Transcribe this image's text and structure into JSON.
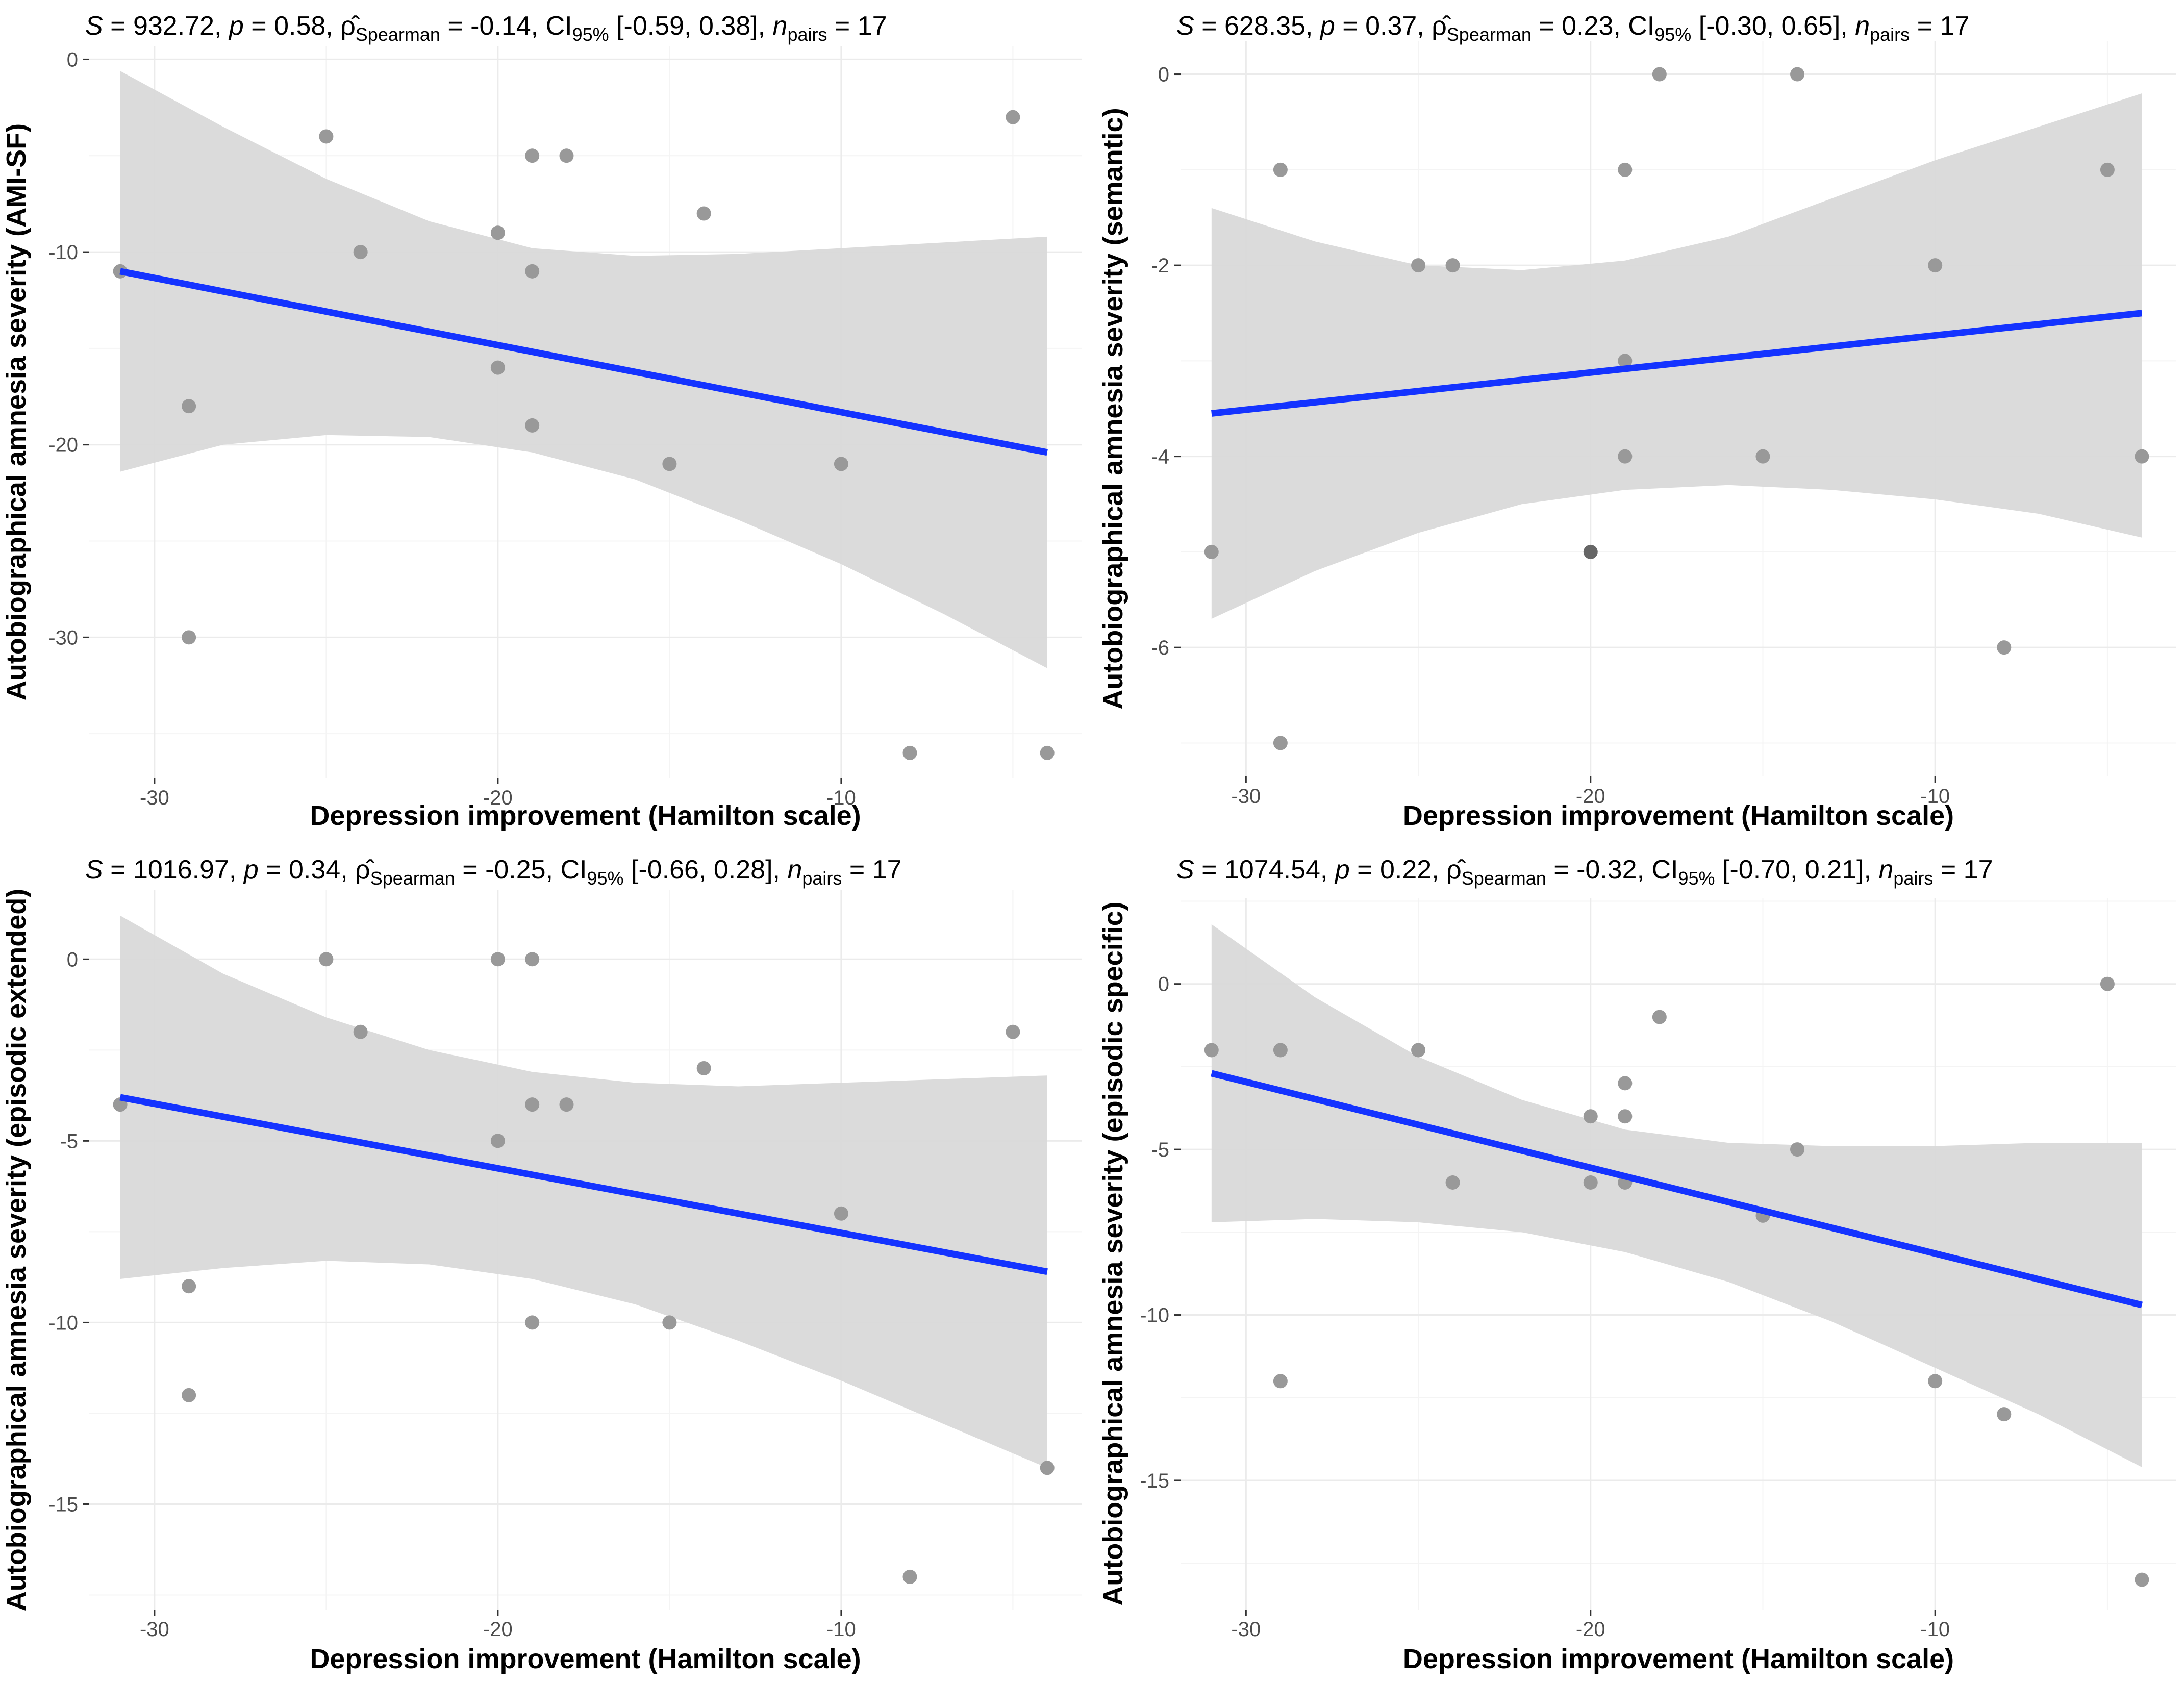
{
  "figure": {
    "background": "#ffffff",
    "colors": {
      "point": "#999999",
      "point_overlap": "#666666",
      "fit_line": "#1433ff",
      "ci_band": "#d9d9d9",
      "grid_major": "#ebebeb",
      "grid_minor": "#f4f4f4",
      "tick_text": "#4d4d4d"
    }
  },
  "chart_data": [
    {
      "type": "scatter",
      "panel": "top-left",
      "title": {
        "s_part": "S = 932.72, ",
        "p_part": "p = 0.58, ",
        "rho_symbol": "ρ̂",
        "rho_sub": "Spearman",
        "rho_value": " = -0.14, CI",
        "ci_sub": "95%",
        "ci_value": " [-0.59, 0.38], ",
        "n_symbol": "n",
        "n_sub": "pairs",
        "n_value": " = 17"
      },
      "xlabel": "Depression improvement (Hamilton scale)",
      "ylabel": "Autobiographical amnesia severity (AMI-SF)",
      "xlim": [
        -31.9,
        -3
      ],
      "ylim": [
        -37.3,
        0.7
      ],
      "xticks": [
        -30,
        -20,
        -10
      ],
      "xtick_labels": [
        "-30",
        "-20",
        "-10"
      ],
      "yticks": [
        0,
        -10,
        -20,
        -30
      ],
      "ytick_labels": [
        "0",
        "-10",
        "-20",
        "-30"
      ],
      "points": [
        {
          "x": -31,
          "y": -11
        },
        {
          "x": -29,
          "y": -18
        },
        {
          "x": -29,
          "y": -30
        },
        {
          "x": -25,
          "y": -4
        },
        {
          "x": -24,
          "y": -10
        },
        {
          "x": -20,
          "y": -9
        },
        {
          "x": -20,
          "y": -16
        },
        {
          "x": -19,
          "y": -5
        },
        {
          "x": -19,
          "y": -11
        },
        {
          "x": -19,
          "y": -19
        },
        {
          "x": -18,
          "y": -5
        },
        {
          "x": -15,
          "y": -21
        },
        {
          "x": -14,
          "y": -8
        },
        {
          "x": -10,
          "y": -21
        },
        {
          "x": -8,
          "y": -36
        },
        {
          "x": -5,
          "y": -3
        },
        {
          "x": -4,
          "y": -36
        }
      ],
      "fit": {
        "x": [
          -31,
          -4
        ],
        "y": [
          -11,
          -20.4
        ]
      },
      "ci_band": {
        "x": [
          -31,
          -28,
          -25,
          -22,
          -19,
          -16,
          -13,
          -10,
          -7,
          -4
        ],
        "upper": [
          -0.6,
          -3.5,
          -6.2,
          -8.4,
          -9.8,
          -10.2,
          -10.1,
          -9.8,
          -9.5,
          -9.2
        ],
        "lower": [
          -21.4,
          -20.0,
          -19.5,
          -19.6,
          -20.4,
          -21.8,
          -23.9,
          -26.2,
          -28.8,
          -31.6
        ]
      }
    },
    {
      "type": "scatter",
      "panel": "top-right",
      "title": {
        "s_part": "S = 628.35, ",
        "p_part": "p = 0.37, ",
        "rho_symbol": "ρ̂",
        "rho_sub": "Spearman",
        "rho_value": " = 0.23, CI",
        "ci_sub": "95%",
        "ci_value": " [-0.30, 0.65], ",
        "n_symbol": "n",
        "n_sub": "pairs",
        "n_value": " = 17"
      },
      "xlabel": "Depression improvement (Hamilton scale)",
      "ylabel": "Autobiographical amnesia severity (semantic)",
      "xlim": [
        -31.9,
        -3
      ],
      "ylim": [
        -7.35,
        0.35
      ],
      "xticks": [
        -30,
        -20,
        -10
      ],
      "xtick_labels": [
        "-30",
        "-20",
        "-10"
      ],
      "yticks": [
        0,
        -2,
        -4,
        -6
      ],
      "ytick_labels": [
        "0",
        "-2",
        "-4",
        "-6"
      ],
      "points": [
        {
          "x": -31,
          "y": -5
        },
        {
          "x": -29,
          "y": -1
        },
        {
          "x": -29,
          "y": -7
        },
        {
          "x": -25,
          "y": -2
        },
        {
          "x": -24,
          "y": -2
        },
        {
          "x": -20,
          "y": -5,
          "overlap": true
        },
        {
          "x": -19,
          "y": -1
        },
        {
          "x": -19,
          "y": -3
        },
        {
          "x": -19,
          "y": -4
        },
        {
          "x": -18,
          "y": 0
        },
        {
          "x": -15,
          "y": -4
        },
        {
          "x": -14,
          "y": 0
        },
        {
          "x": -10,
          "y": -2
        },
        {
          "x": -8,
          "y": -6
        },
        {
          "x": -5,
          "y": -1
        },
        {
          "x": -4,
          "y": -4
        }
      ],
      "fit": {
        "x": [
          -31,
          -4
        ],
        "y": [
          -3.55,
          -2.5
        ]
      },
      "ci_band": {
        "x": [
          -31,
          -28,
          -25,
          -22,
          -19,
          -16,
          -13,
          -10,
          -7,
          -4
        ],
        "upper": [
          -1.4,
          -1.75,
          -2.0,
          -2.05,
          -1.95,
          -1.7,
          -1.3,
          -0.9,
          -0.55,
          -0.2
        ],
        "lower": [
          -5.7,
          -5.2,
          -4.8,
          -4.5,
          -4.35,
          -4.3,
          -4.35,
          -4.45,
          -4.6,
          -4.85
        ]
      }
    },
    {
      "type": "scatter",
      "panel": "bottom-left",
      "title": {
        "s_part": "S = 1016.97, ",
        "p_part": "p = 0.34, ",
        "rho_symbol": "ρ̂",
        "rho_sub": "Spearman",
        "rho_value": " = -0.25, CI",
        "ci_sub": "95%",
        "ci_value": " [-0.66, 0.28], ",
        "n_symbol": "n",
        "n_sub": "pairs",
        "n_value": " = 17"
      },
      "xlabel": "Depression improvement (Hamilton scale)",
      "ylabel": "Autobiographical amnesia severity (episodic extended)",
      "xlim": [
        -31.9,
        -3
      ],
      "ylim": [
        -17.9,
        1.9
      ],
      "xticks": [
        -30,
        -20,
        -10
      ],
      "xtick_labels": [
        "-30",
        "-20",
        "-10"
      ],
      "yticks": [
        0,
        -5,
        -10,
        -15
      ],
      "ytick_labels": [
        "0",
        "-5",
        "-10",
        "-15"
      ],
      "points": [
        {
          "x": -31,
          "y": -4
        },
        {
          "x": -29,
          "y": -9
        },
        {
          "x": -29,
          "y": -12
        },
        {
          "x": -25,
          "y": 0
        },
        {
          "x": -24,
          "y": -2
        },
        {
          "x": -20,
          "y": 0
        },
        {
          "x": -20,
          "y": -5
        },
        {
          "x": -19,
          "y": 0
        },
        {
          "x": -19,
          "y": -4
        },
        {
          "x": -19,
          "y": -10
        },
        {
          "x": -18,
          "y": -4
        },
        {
          "x": -15,
          "y": -10
        },
        {
          "x": -14,
          "y": -3
        },
        {
          "x": -10,
          "y": -7
        },
        {
          "x": -8,
          "y": -17
        },
        {
          "x": -5,
          "y": -2
        },
        {
          "x": -4,
          "y": -14
        }
      ],
      "fit": {
        "x": [
          -31,
          -4
        ],
        "y": [
          -3.8,
          -8.6
        ]
      },
      "ci_band": {
        "x": [
          -31,
          -28,
          -25,
          -22,
          -19,
          -16,
          -13,
          -10,
          -7,
          -4
        ],
        "upper": [
          1.2,
          -0.4,
          -1.6,
          -2.5,
          -3.1,
          -3.4,
          -3.5,
          -3.4,
          -3.3,
          -3.2
        ],
        "lower": [
          -8.8,
          -8.5,
          -8.3,
          -8.4,
          -8.8,
          -9.5,
          -10.5,
          -11.6,
          -12.8,
          -14.0
        ]
      }
    },
    {
      "type": "scatter",
      "panel": "bottom-right",
      "title": {
        "s_part": "S = 1074.54, ",
        "p_part": "p = 0.22, ",
        "rho_symbol": "ρ̂",
        "rho_sub": "Spearman",
        "rho_value": " = -0.32, CI",
        "ci_sub": "95%",
        "ci_value": " [-0.70, 0.21], ",
        "n_symbol": "n",
        "n_sub": "pairs",
        "n_value": " = 17"
      },
      "xlabel": "Depression improvement (Hamilton scale)",
      "ylabel": "Autobiographical amnesia severity (episodic specific)",
      "xlim": [
        -31.9,
        -3
      ],
      "ylim": [
        -18.9,
        2.6
      ],
      "xticks": [
        -30,
        -20,
        -10
      ],
      "xtick_labels": [
        "-30",
        "-20",
        "-10"
      ],
      "yticks": [
        0,
        -5,
        -10,
        -15
      ],
      "ytick_labels": [
        "0",
        "-5",
        "-10",
        "-15"
      ],
      "points": [
        {
          "x": -31,
          "y": -2
        },
        {
          "x": -29,
          "y": -2
        },
        {
          "x": -29,
          "y": -12
        },
        {
          "x": -25,
          "y": -2
        },
        {
          "x": -24,
          "y": -6
        },
        {
          "x": -20,
          "y": -4
        },
        {
          "x": -20,
          "y": -6
        },
        {
          "x": -19,
          "y": -3
        },
        {
          "x": -19,
          "y": -4
        },
        {
          "x": -19,
          "y": -6
        },
        {
          "x": -18,
          "y": -1
        },
        {
          "x": -15,
          "y": -7
        },
        {
          "x": -14,
          "y": -5
        },
        {
          "x": -10,
          "y": -12
        },
        {
          "x": -8,
          "y": -13
        },
        {
          "x": -5,
          "y": 0
        },
        {
          "x": -4,
          "y": -18
        }
      ],
      "fit": {
        "x": [
          -31,
          -4
        ],
        "y": [
          -2.7,
          -9.7
        ]
      },
      "ci_band": {
        "x": [
          -31,
          -28,
          -25,
          -22,
          -19,
          -16,
          -13,
          -10,
          -7,
          -4
        ],
        "upper": [
          1.8,
          -0.4,
          -2.2,
          -3.5,
          -4.4,
          -4.8,
          -4.9,
          -4.9,
          -4.8,
          -4.8
        ],
        "lower": [
          -7.2,
          -7.1,
          -7.2,
          -7.5,
          -8.1,
          -9.0,
          -10.2,
          -11.6,
          -13.0,
          -14.6
        ]
      }
    }
  ]
}
